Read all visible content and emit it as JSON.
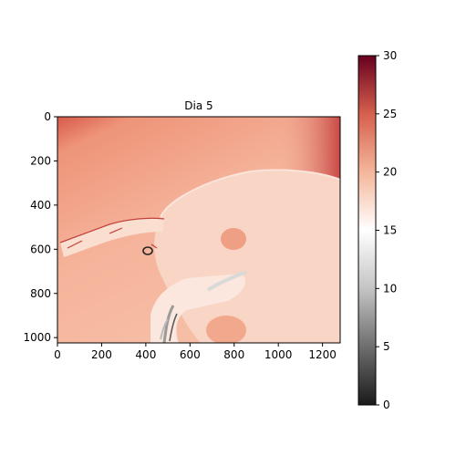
{
  "chart_data": {
    "type": "heatmap",
    "title": "Dia 5",
    "xlabel": "",
    "ylabel": "",
    "xlim": [
      0,
      1280
    ],
    "ylim": [
      1024,
      0
    ],
    "x_ticks": [
      "0",
      "200",
      "400",
      "600",
      "800",
      "1000",
      "1200"
    ],
    "y_ticks": [
      "0",
      "200",
      "400",
      "600",
      "800",
      "1000"
    ],
    "x_tick_values": [
      0,
      200,
      400,
      600,
      800,
      1000,
      1200
    ],
    "y_tick_values": [
      0,
      200,
      400,
      600,
      800,
      1000
    ],
    "colormap": "RdGy_r",
    "colorbar": {
      "range": [
        0,
        30
      ],
      "ticks": [
        "0",
        "5",
        "10",
        "15",
        "20",
        "25",
        "30"
      ],
      "tick_values": [
        0,
        5,
        10,
        15,
        20,
        25,
        30
      ]
    },
    "colors": {
      "c0": "#1a1a1a",
      "c5": "#6e6e6e",
      "c10": "#c4c4c4",
      "c15": "#ffffff",
      "c20": "#f4b69b",
      "c25": "#d6604d",
      "c30": "#67001f",
      "background_value_color": "#f3a98c",
      "head_value_color": "#f8d8c9"
    }
  }
}
